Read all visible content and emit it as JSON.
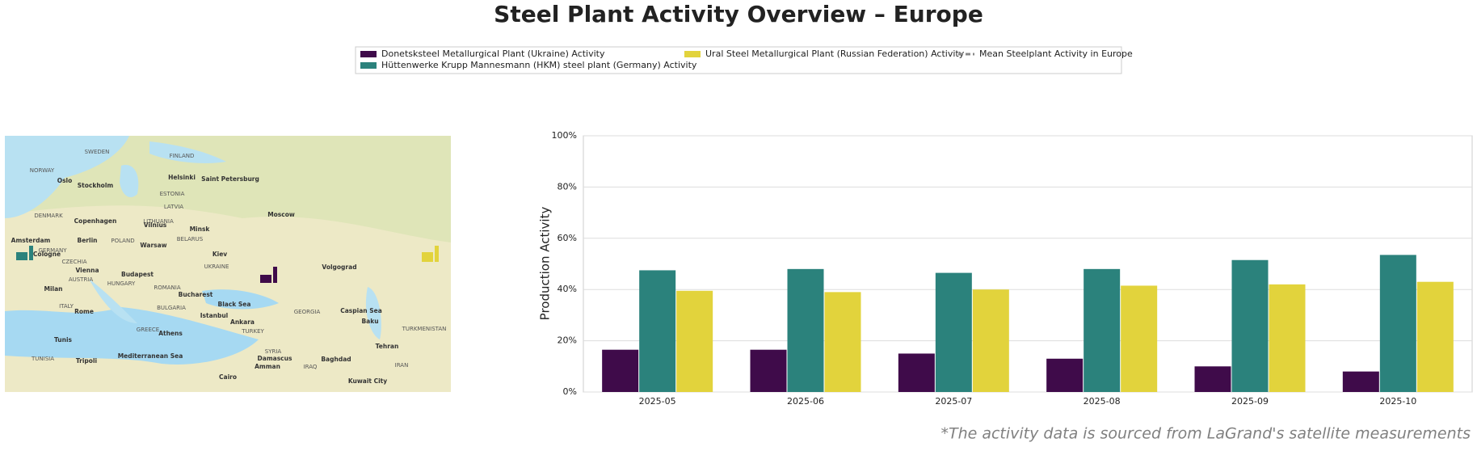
{
  "chart_data": {
    "type": "bar",
    "title": "Steel Plant Activity Overview – Europe",
    "y_label": "Production Activity",
    "footnote": "*The activity data is sourced from LaGrand's satellite measurements",
    "categories": [
      "2025-05",
      "2025-06",
      "2025-07",
      "2025-08",
      "2025-09",
      "2025-10"
    ],
    "series": [
      {
        "name": "Donetsksteel Metallurgical Plant (Ukraine) Activity",
        "color": "#3f0b4a",
        "values": [
          16.5,
          16.5,
          15,
          13,
          10,
          8
        ]
      },
      {
        "name": "Hüttenwerke Krupp Mannesmann (HKM) steel plant (Germany) Activity",
        "color": "#2b827c",
        "values": [
          47.5,
          48,
          46.5,
          48,
          51.5,
          53.5
        ]
      },
      {
        "name": "Ural Steel Metallurgical Plant (Russian Federation) Activity",
        "color": "#e2d33c",
        "values": [
          39.5,
          39,
          40,
          41.5,
          42,
          43
        ]
      }
    ],
    "mean_legend": {
      "name": "Mean Steelplant Activity in Europe",
      "color": "#888888"
    },
    "ylim": [
      0,
      100
    ],
    "yticks": [
      {
        "value": 0,
        "label": "0%"
      },
      {
        "value": 20,
        "label": "20%"
      },
      {
        "value": 40,
        "label": "40%"
      },
      {
        "value": 60,
        "label": "60%"
      },
      {
        "value": 80,
        "label": "80%"
      },
      {
        "value": 100,
        "label": "100%"
      }
    ],
    "grid": true
  },
  "map": {
    "labels": [
      "SWEDEN",
      "FINLAND",
      "NORWAY",
      "Oslo",
      "Stockholm",
      "Helsinki",
      "Saint Petersburg",
      "ESTONIA",
      "LATVIA",
      "DENMARK",
      "Copenhagen",
      "LITHUANIA",
      "Vilnius",
      "Minsk",
      "Moscow",
      "Amsterdam",
      "Berlin",
      "POLAND",
      "BELARUS",
      "GERMANY",
      "Cologne",
      "Warsaw",
      "Kiev",
      "CZECHIA",
      "UKRAINE",
      "Volgograd",
      "Vienna",
      "Budapest",
      "AUSTRIA",
      "HUNGARY",
      "ROMANIA",
      "Milan",
      "Bucharest",
      "Black Sea",
      "ITALY",
      "Rome",
      "BULGARIA",
      "Istanbul",
      "GEORGIA",
      "Caspian Sea",
      "Baku",
      "Ankara",
      "TURKEY",
      "GREECE",
      "Athens",
      "Tunis",
      "TUNISIA",
      "Mediterranean Sea",
      "Tripoli",
      "SYRIA",
      "Damascus",
      "Baghdad",
      "IRAQ",
      "IRAN",
      "Amman",
      "Tehran",
      "TURKMENISTAN",
      "Cairo",
      "Kuwait City"
    ]
  }
}
